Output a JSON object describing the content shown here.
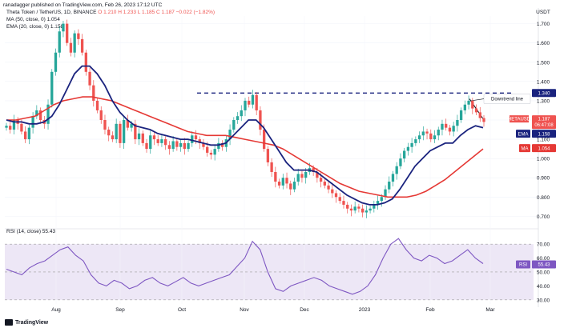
{
  "header": {
    "publisher": "ranadagger published on TradingView.com, Feb 26, 2023 17:12 UTC"
  },
  "legend": {
    "symbol_line": "Theta Token / TetherUS, 1D, BINANCE",
    "ohlc": "O 1.210  H 1.233  L 1.185  C 1.187  −0.022 (−1.82%)",
    "ma_line": "MA (50, close, 0)  1.054",
    "ema_line": "EMA (20, close, 0)  1.158",
    "rsi_line": "RSI (14, close)  55.43"
  },
  "currency": "USDT",
  "annotation": "Downtrend line",
  "badges": {
    "resistance": "1.340",
    "symbol": "THETAUSDT",
    "price": "1.187",
    "countdown": "06:47:08",
    "ema_label": "EMA",
    "ema_value": "1.158",
    "ma_label": "MA",
    "ma_value": "1.054",
    "rsi_label": "RSI",
    "rsi_value": "55.43"
  },
  "footer": {
    "brand": "TradingView"
  },
  "colors": {
    "up": "#26a69a",
    "down": "#ef5350",
    "ema": "#1a237e",
    "ma": "#e53935",
    "resistance": "#1a237e",
    "rsi": "#7e57c2",
    "rsi_band": "#ede7f6"
  },
  "chart_data": [
    {
      "type": "candlestick",
      "title": "Theta Token / TetherUS, 1D, BINANCE",
      "ylabel": "USDT",
      "y_ticks": [
        "0.700",
        "0.800",
        "0.900",
        "1.000",
        "1.100",
        "1.200",
        "1.300",
        "1.400",
        "1.500",
        "1.600",
        "1.700"
      ],
      "ylim": [
        0.66,
        1.74
      ],
      "x_ticks": [
        "Aug",
        "Sep",
        "Oct",
        "Nov",
        "Dec",
        "2023",
        "Feb",
        "Mar"
      ],
      "close_path": [
        1.17,
        1.15,
        1.2,
        1.18,
        1.14,
        1.1,
        1.16,
        1.22,
        1.25,
        1.2,
        1.18,
        1.28,
        1.45,
        1.55,
        1.66,
        1.7,
        1.6,
        1.55,
        1.65,
        1.62,
        1.55,
        1.45,
        1.38,
        1.3,
        1.25,
        1.2,
        1.15,
        1.12,
        1.1,
        1.18,
        1.08,
        1.2,
        1.16,
        1.18,
        1.1,
        1.13,
        1.08,
        1.05,
        1.12,
        1.1,
        1.08,
        1.1,
        1.07,
        1.05,
        1.09,
        1.06,
        1.08,
        1.05,
        1.08,
        1.12,
        1.1,
        1.08,
        1.06,
        1.03,
        1.02,
        1.05,
        1.08,
        1.06,
        1.1,
        1.15,
        1.2,
        1.22,
        1.25,
        1.3,
        1.28,
        1.33,
        1.25,
        1.15,
        1.05,
        0.98,
        0.93,
        0.88,
        0.86,
        0.9,
        0.87,
        0.84,
        0.88,
        0.92,
        0.9,
        0.93,
        0.95,
        0.93,
        0.9,
        0.88,
        0.86,
        0.84,
        0.82,
        0.8,
        0.78,
        0.76,
        0.74,
        0.73,
        0.75,
        0.74,
        0.72,
        0.73,
        0.74,
        0.76,
        0.78,
        0.8,
        0.84,
        0.88,
        0.92,
        0.96,
        1.0,
        1.04,
        1.06,
        1.08,
        1.1,
        1.12,
        1.14,
        1.13,
        1.1,
        1.12,
        1.15,
        1.18,
        1.16,
        1.14,
        1.17,
        1.2,
        1.25,
        1.28,
        1.3,
        1.26,
        1.24,
        1.21,
        1.19
      ],
      "ema_20": [
        1.2,
        1.19,
        1.19,
        1.18,
        1.18,
        1.19,
        1.22,
        1.28,
        1.36,
        1.44,
        1.48,
        1.48,
        1.44,
        1.38,
        1.3,
        1.24,
        1.2,
        1.17,
        1.16,
        1.15,
        1.13,
        1.12,
        1.11,
        1.1,
        1.1,
        1.09,
        1.08,
        1.07,
        1.07,
        1.08,
        1.12,
        1.16,
        1.2,
        1.2,
        1.16,
        1.1,
        1.04,
        0.98,
        0.94,
        0.94,
        0.94,
        0.93,
        0.9,
        0.87,
        0.84,
        0.81,
        0.79,
        0.77,
        0.76,
        0.76,
        0.77,
        0.79,
        0.84,
        0.9,
        0.96,
        1.0,
        1.04,
        1.06,
        1.08,
        1.08,
        1.12,
        1.15,
        1.17,
        1.16
      ],
      "ma_50": [
        1.2,
        1.2,
        1.21,
        1.22,
        1.25,
        1.28,
        1.3,
        1.31,
        1.32,
        1.32,
        1.31,
        1.3,
        1.28,
        1.26,
        1.24,
        1.22,
        1.2,
        1.18,
        1.16,
        1.14,
        1.13,
        1.12,
        1.12,
        1.12,
        1.11,
        1.1,
        1.09,
        1.08,
        1.07,
        1.05,
        1.02,
        0.99,
        0.96,
        0.93,
        0.9,
        0.87,
        0.85,
        0.83,
        0.82,
        0.81,
        0.8,
        0.8,
        0.8,
        0.81,
        0.83,
        0.86,
        0.89,
        0.93,
        0.97,
        1.01,
        1.05
      ]
    },
    {
      "type": "line",
      "title": "RSI (14, close)",
      "y_ticks": [
        "30.00",
        "40.00",
        "50.00",
        "60.00",
        "70.00"
      ],
      "ylim": [
        27,
        77
      ],
      "band": [
        30,
        70
      ],
      "values": [
        52,
        50,
        48,
        53,
        56,
        58,
        62,
        66,
        68,
        62,
        58,
        48,
        42,
        40,
        44,
        42,
        38,
        40,
        44,
        46,
        42,
        40,
        43,
        46,
        42,
        40,
        42,
        44,
        46,
        48,
        54,
        60,
        72,
        66,
        50,
        38,
        36,
        40,
        42,
        44,
        46,
        44,
        40,
        38,
        36,
        34,
        36,
        40,
        48,
        60,
        70,
        74,
        66,
        60,
        58,
        62,
        60,
        56,
        58,
        62,
        66,
        60,
        56
      ]
    }
  ]
}
